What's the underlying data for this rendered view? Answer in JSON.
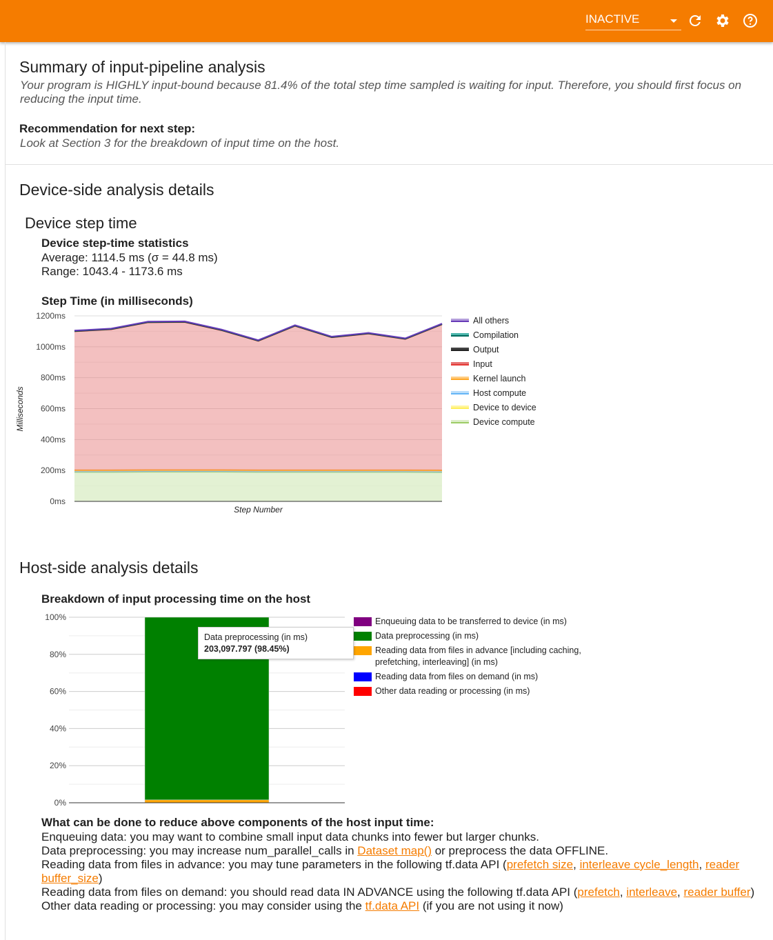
{
  "header": {
    "run_select": "INACTIVE",
    "icons": [
      "refresh-icon",
      "gear-icon",
      "help-icon"
    ],
    "color": "#f57c00"
  },
  "summary": {
    "title": "Summary of input-pipeline analysis",
    "text": "Your program is HIGHLY input-bound because 81.4% of the total step time sampled is waiting for input. Therefore, you should first focus on reducing the input time.",
    "rec_label": "Recommendation for next step:",
    "rec_text": "Look at Section 3 for the breakdown of input time on the host."
  },
  "device": {
    "title": "Device-side analysis details",
    "subtitle": "Device step time",
    "stats_title": "Device step-time statistics",
    "average": "Average: 1114.5 ms (σ = 44.8 ms)",
    "range": "Range: 1043.4 - 1173.6 ms"
  },
  "host": {
    "title": "Host-side analysis details"
  },
  "chart_data": [
    {
      "type": "area",
      "stacked": true,
      "title": "Step Time (in milliseconds)",
      "xlabel": "Step Number",
      "ylabel": "Milliseconds",
      "ylim": [
        0,
        1200
      ],
      "yticks": [
        "0ms",
        "200ms",
        "400ms",
        "600ms",
        "800ms",
        "1000ms",
        "1200ms"
      ],
      "grid": true,
      "legend": "right",
      "series": [
        {
          "name": "Device compute",
          "color": "#dcedc8",
          "line": "#9ccc65",
          "values": [
            190,
            190,
            191,
            191,
            191,
            190,
            190,
            190,
            190,
            190,
            189
          ]
        },
        {
          "name": "Device to device",
          "color": "#fff59d",
          "line": "#ffee58",
          "values": [
            3,
            3,
            3,
            3,
            3,
            3,
            3,
            3,
            3,
            3,
            3
          ]
        },
        {
          "name": "Host compute",
          "color": "#bbdefb",
          "line": "#64b5f6",
          "values": [
            1,
            1,
            1,
            1,
            1,
            1,
            1,
            1,
            1,
            1,
            1
          ]
        },
        {
          "name": "Kernel launch",
          "color": "#ffcc80",
          "line": "#ffa726",
          "values": [
            8,
            8,
            8,
            8,
            8,
            8,
            8,
            8,
            8,
            8,
            8
          ]
        },
        {
          "name": "Input",
          "color": "#e57373",
          "line": "#e53935",
          "values": [
            898,
            911,
            955,
            957,
            904,
            836,
            933,
            859,
            883,
            848,
            944
          ]
        },
        {
          "name": "Output",
          "color": "#424242",
          "line": "#212121",
          "values": [
            1,
            1,
            1,
            1,
            1,
            1,
            1,
            1,
            1,
            1,
            1
          ]
        },
        {
          "name": "Compilation",
          "color": "#4db6ac",
          "line": "#00695c",
          "values": [
            2,
            2,
            2,
            2,
            2,
            2,
            2,
            2,
            2,
            2,
            2
          ]
        },
        {
          "name": "All others",
          "color": "#b39ddb",
          "line": "#673ab7",
          "values": [
            2,
            2,
            2,
            2,
            2,
            2,
            2,
            2,
            2,
            2,
            2
          ]
        }
      ]
    },
    {
      "type": "bar",
      "stacked": true,
      "percent": true,
      "title": "Breakdown of input processing time on the host",
      "ylim": [
        0,
        100
      ],
      "yticks": [
        "0%",
        "20%",
        "40%",
        "60%",
        "80%",
        "100%"
      ],
      "grid": true,
      "legend": "right",
      "series": [
        {
          "name": "Enqueuing data to be transferred to device (in ms)",
          "color": "#800080",
          "percent": 0.0
        },
        {
          "name": "Data preprocessing (in ms)",
          "color": "#008000",
          "percent": 98.45
        },
        {
          "name": "Reading data from files in advance [including caching, prefetching, interleaving] (in ms)",
          "color": "#ffa500",
          "percent": 1.55
        },
        {
          "name": "Reading data from files on demand (in ms)",
          "color": "#0000ff",
          "percent": 0.0
        },
        {
          "name": "Other data reading or processing (in ms)",
          "color": "#ff0000",
          "percent": 0.0
        }
      ],
      "tooltip": {
        "label": "Data preprocessing (in ms)",
        "value": "203,097.797 (98.45%)"
      }
    }
  ],
  "advice": {
    "title": "What can be done to reduce above components of the host input time:",
    "enqueue": "Enqueuing data: you may want to combine small input data chunks into fewer but larger chunks.",
    "pre_a": "Data preprocessing: you may increase num_parallel_calls in ",
    "pre_link": "Dataset map()",
    "pre_b": " or preprocess the data OFFLINE.",
    "adv_a": "Reading data from files in advance: you may tune parameters in the following tf.data API (",
    "adv_l1": "prefetch size",
    "adv_l2": "interleave cycle_length",
    "adv_l3": "reader buffer_size",
    "adv_b": ")",
    "dem_a": "Reading data from files on demand: you should read data IN ADVANCE using the following tf.data API (",
    "dem_l1": "prefetch",
    "dem_l2": "interleave",
    "dem_l3": "reader buffer",
    "dem_b": ")",
    "oth_a": "Other data reading or processing: you may consider using the ",
    "oth_link": "tf.data API",
    "oth_b": " (if you are not using it now)"
  }
}
